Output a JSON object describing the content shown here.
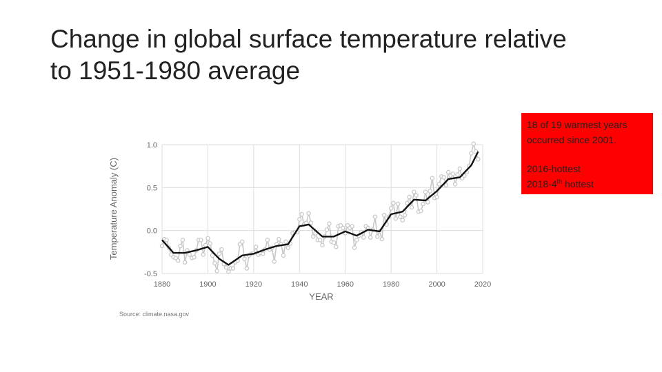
{
  "slide": {
    "title_line1": "Change in global surface temperature relative",
    "title_line2": "to 1951-1980 average"
  },
  "callout": {
    "line1": "18 of 19 warmest years",
    "line2": "occurred since 2001.",
    "line3": "2016-hottest",
    "line4_pre": "2018-4",
    "line4_sup": "th",
    "line4_post": " hottest",
    "background": "#ff0000"
  },
  "chart_data": {
    "type": "line",
    "xlabel": "YEAR",
    "ylabel": "Temperature Anomaly (C)",
    "source": "Source: climate.nasa.gov",
    "xlim": [
      1880,
      2020
    ],
    "ylim": [
      -0.5,
      1.0
    ],
    "xticks": [
      "1880",
      "1900",
      "1920",
      "1940",
      "1960",
      "1980",
      "2000",
      "2020"
    ],
    "yticks": [
      "1.0",
      "0.5",
      "0.0",
      "-0.5"
    ],
    "grid": true,
    "colors": {
      "annual": "#c8c8c8",
      "smooth": "#111111",
      "grid": "#dddddd"
    },
    "series": [
      {
        "x": [
          1880,
          1885,
          1890,
          1895,
          1900,
          1905,
          1909,
          1915,
          1920,
          1925,
          1930,
          1935,
          1940,
          1944,
          1950,
          1955,
          1960,
          1965,
          1970,
          1975,
          1980,
          1985,
          1990,
          1995,
          2000,
          2005,
          2010,
          2015,
          2018
        ],
        "values": [
          -0.11,
          -0.26,
          -0.26,
          -0.23,
          -0.19,
          -0.33,
          -0.4,
          -0.29,
          -0.27,
          -0.22,
          -0.18,
          -0.16,
          0.05,
          0.07,
          -0.07,
          -0.07,
          -0.01,
          -0.06,
          0.01,
          -0.01,
          0.19,
          0.22,
          0.36,
          0.35,
          0.46,
          0.6,
          0.62,
          0.76,
          0.92
        ]
      },
      {
        "x": [
          1880,
          1881,
          1882,
          1883,
          1884,
          1885,
          1886,
          1887,
          1888,
          1889,
          1890,
          1891,
          1892,
          1893,
          1894,
          1895,
          1896,
          1897,
          1898,
          1899,
          1900,
          1901,
          1902,
          1903,
          1904,
          1905,
          1906,
          1907,
          1908,
          1909,
          1910,
          1911,
          1912,
          1913,
          1914,
          1915,
          1916,
          1917,
          1918,
          1919,
          1920,
          1921,
          1922,
          1923,
          1924,
          1925,
          1926,
          1927,
          1928,
          1929,
          1930,
          1931,
          1932,
          1933,
          1934,
          1935,
          1936,
          1937,
          1938,
          1939,
          1940,
          1941,
          1942,
          1943,
          1944,
          1945,
          1946,
          1947,
          1948,
          1949,
          1950,
          1951,
          1952,
          1953,
          1954,
          1955,
          1956,
          1957,
          1958,
          1959,
          1960,
          1961,
          1962,
          1963,
          1964,
          1965,
          1966,
          1967,
          1968,
          1969,
          1970,
          1971,
          1972,
          1973,
          1974,
          1975,
          1976,
          1977,
          1978,
          1979,
          1980,
          1981,
          1982,
          1983,
          1984,
          1985,
          1986,
          1987,
          1988,
          1989,
          1990,
          1991,
          1992,
          1993,
          1994,
          1995,
          1996,
          1997,
          1998,
          1999,
          2000,
          2001,
          2002,
          2003,
          2004,
          2005,
          2006,
          2007,
          2008,
          2009,
          2010,
          2011,
          2012,
          2013,
          2014,
          2015,
          2016,
          2017,
          2018
        ],
        "values": [
          -0.18,
          -0.1,
          -0.11,
          -0.2,
          -0.28,
          -0.31,
          -0.32,
          -0.35,
          -0.18,
          -0.11,
          -0.37,
          -0.23,
          -0.28,
          -0.32,
          -0.31,
          -0.23,
          -0.11,
          -0.11,
          -0.28,
          -0.17,
          -0.09,
          -0.15,
          -0.29,
          -0.38,
          -0.47,
          -0.27,
          -0.22,
          -0.39,
          -0.43,
          -0.48,
          -0.44,
          -0.44,
          -0.37,
          -0.35,
          -0.16,
          -0.13,
          -0.33,
          -0.44,
          -0.29,
          -0.27,
          -0.26,
          -0.19,
          -0.28,
          -0.26,
          -0.27,
          -0.22,
          -0.11,
          -0.22,
          -0.2,
          -0.36,
          -0.16,
          -0.1,
          -0.16,
          -0.29,
          -0.13,
          -0.2,
          -0.15,
          -0.03,
          -0.02,
          -0.02,
          0.13,
          0.19,
          0.07,
          0.09,
          0.2,
          0.09,
          -0.07,
          -0.03,
          -0.11,
          -0.11,
          -0.17,
          -0.07,
          0.01,
          0.08,
          -0.13,
          -0.14,
          -0.19,
          0.05,
          0.06,
          0.03,
          -0.03,
          0.06,
          0.03,
          0.05,
          -0.2,
          -0.11,
          -0.06,
          -0.02,
          -0.08,
          0.05,
          0.03,
          -0.08,
          0.01,
          0.16,
          -0.07,
          -0.01,
          -0.1,
          0.18,
          0.07,
          0.16,
          0.26,
          0.32,
          0.14,
          0.31,
          0.16,
          0.12,
          0.18,
          0.32,
          0.39,
          0.27,
          0.45,
          0.41,
          0.22,
          0.23,
          0.31,
          0.45,
          0.33,
          0.46,
          0.61,
          0.38,
          0.39,
          0.54,
          0.63,
          0.62,
          0.53,
          0.68,
          0.64,
          0.66,
          0.54,
          0.65,
          0.72,
          0.61,
          0.64,
          0.68,
          0.75,
          0.9,
          1.01,
          0.92,
          0.83
        ]
      }
    ]
  }
}
